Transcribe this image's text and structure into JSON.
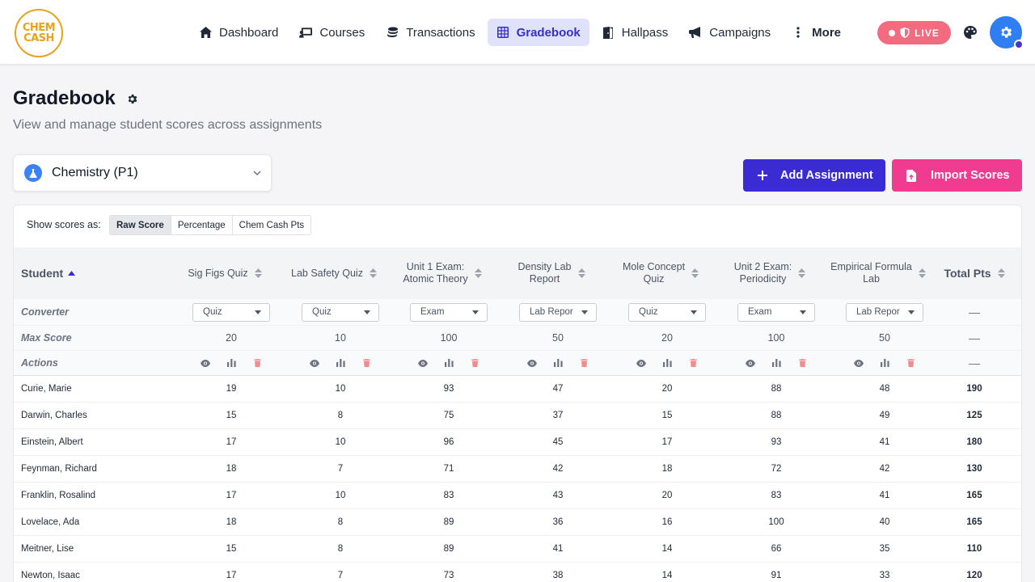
{
  "brand": {
    "logo_line1": "CHEM",
    "logo_line2": "CASH"
  },
  "nav": [
    {
      "label": "Dashboard",
      "icon": "home-icon",
      "active": false
    },
    {
      "label": "Courses",
      "icon": "chalkboard-icon",
      "active": false
    },
    {
      "label": "Transactions",
      "icon": "coins-icon",
      "active": false
    },
    {
      "label": "Gradebook",
      "icon": "table-icon",
      "active": true
    },
    {
      "label": "Hallpass",
      "icon": "door-icon",
      "active": false
    },
    {
      "label": "Campaigns",
      "icon": "megaphone-icon",
      "active": false
    },
    {
      "label": "More",
      "icon": "more-vertical-icon",
      "active": false
    }
  ],
  "live": {
    "label": "LIVE",
    "color": "#f26b7f"
  },
  "page": {
    "title": "Gradebook",
    "subtitle": "View and manage student scores across assignments"
  },
  "class_selector": {
    "value": "Chemistry (P1)"
  },
  "buttons": {
    "add": "Add Assignment",
    "import": "Import Scores"
  },
  "score_mode": {
    "label": "Show scores as:",
    "options": [
      "Raw Score",
      "Percentage",
      "Chem Cash Pts"
    ],
    "selected": "Raw Score"
  },
  "table": {
    "student_header": "Student",
    "total_header": "Total Pts",
    "row_labels": {
      "converter": "Converter",
      "max": "Max Score",
      "actions": "Actions"
    },
    "dash": "—",
    "columns": [
      {
        "title1": "Sig Figs Quiz",
        "title2": "",
        "converter": "Quiz",
        "max": "20"
      },
      {
        "title1": "Lab Safety Quiz",
        "title2": "",
        "converter": "Quiz",
        "max": "10"
      },
      {
        "title1": "Unit 1 Exam:",
        "title2": "Atomic Theory",
        "converter": "Exam",
        "max": "100"
      },
      {
        "title1": "Density Lab",
        "title2": "Report",
        "converter": "Lab Repor",
        "max": "50"
      },
      {
        "title1": "Mole Concept",
        "title2": "Quiz",
        "converter": "Quiz",
        "max": "20"
      },
      {
        "title1": "Unit 2 Exam:",
        "title2": "Periodicity",
        "converter": "Exam",
        "max": "100"
      },
      {
        "title1": "Empirical Formula",
        "title2": "Lab",
        "converter": "Lab Repor",
        "max": "50"
      }
    ],
    "students": [
      {
        "name": "Curie, Marie",
        "scores": [
          "19",
          "10",
          "93",
          "47",
          "20",
          "88",
          "48"
        ],
        "total": "190"
      },
      {
        "name": "Darwin, Charles",
        "scores": [
          "15",
          "8",
          "75",
          "37",
          "15",
          "88",
          "49"
        ],
        "total": "125"
      },
      {
        "name": "Einstein, Albert",
        "scores": [
          "17",
          "10",
          "96",
          "45",
          "17",
          "93",
          "41"
        ],
        "total": "180"
      },
      {
        "name": "Feynman, Richard",
        "scores": [
          "18",
          "7",
          "71",
          "42",
          "18",
          "72",
          "42"
        ],
        "total": "130"
      },
      {
        "name": "Franklin, Rosalind",
        "scores": [
          "17",
          "10",
          "83",
          "43",
          "20",
          "83",
          "41"
        ],
        "total": "165"
      },
      {
        "name": "Lovelace, Ada",
        "scores": [
          "18",
          "8",
          "89",
          "36",
          "16",
          "100",
          "40"
        ],
        "total": "165"
      },
      {
        "name": "Meitner, Lise",
        "scores": [
          "15",
          "8",
          "89",
          "41",
          "14",
          "66",
          "35"
        ],
        "total": "110"
      },
      {
        "name": "Newton, Isaac",
        "scores": [
          "17",
          "7",
          "73",
          "38",
          "14",
          "91",
          "33"
        ],
        "total": "120"
      }
    ]
  },
  "colors": {
    "accent": "#3b2bd3",
    "import": "#ef3b90",
    "delete": "#f28b8b"
  }
}
